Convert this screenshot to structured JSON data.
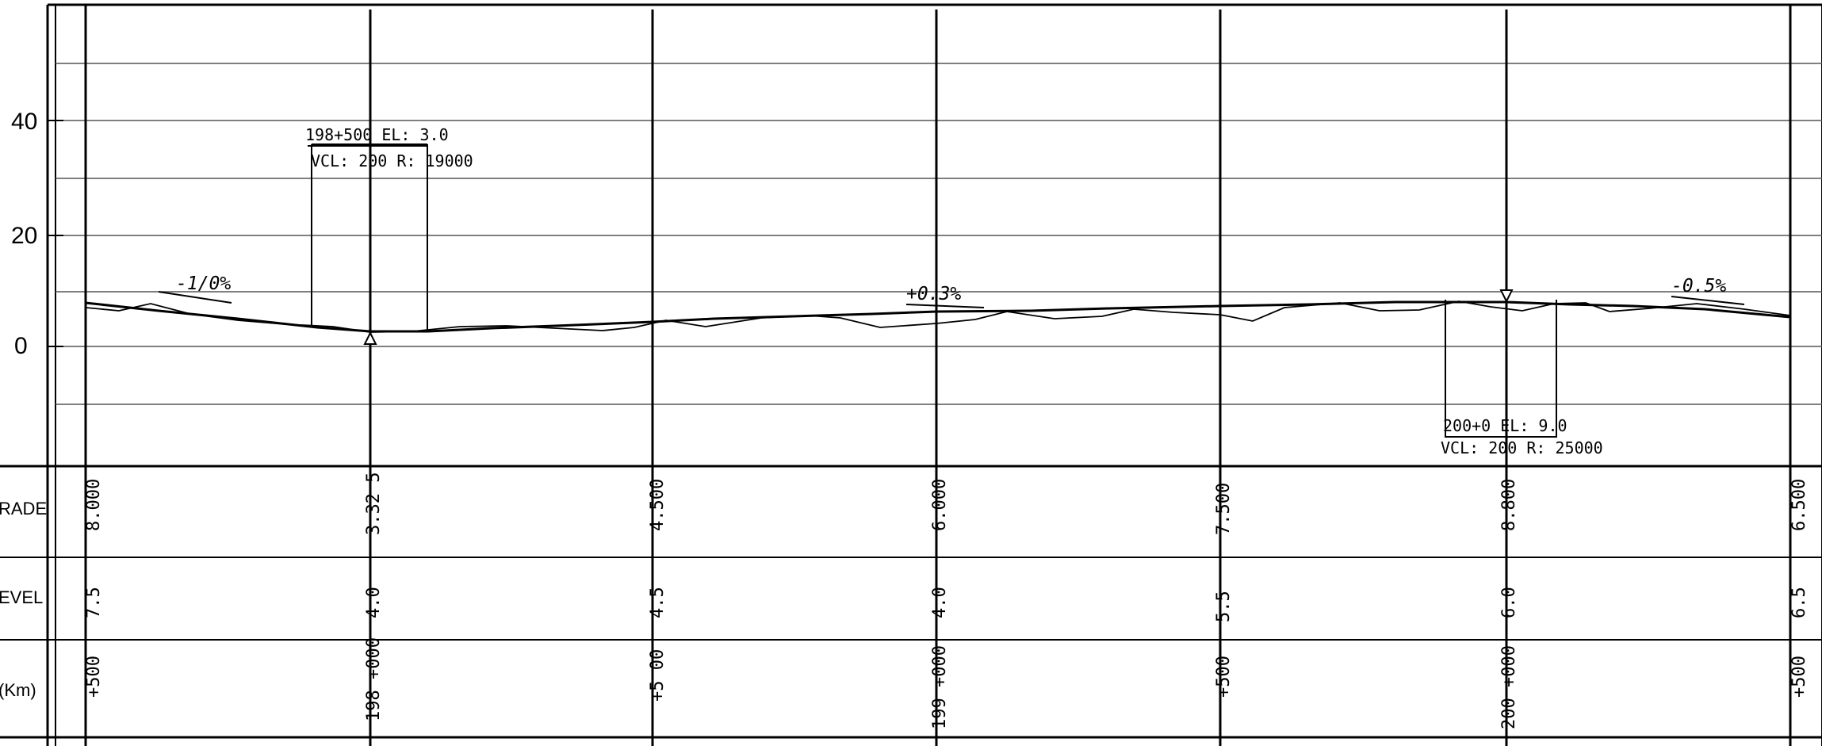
{
  "row_labels": {
    "grade": "RADE",
    "level": "EVEL",
    "chainage": "(Km)"
  },
  "y_axis_labels": [
    "40",
    "20",
    "0"
  ],
  "stations": [
    {
      "grade": "8.000",
      "level": "7.5",
      "chainage": "+500"
    },
    {
      "grade": "3.32 5",
      "level": "4.0",
      "chainage": "198 +000"
    },
    {
      "grade": "4.500",
      "level": "4.5",
      "chainage": "+5 00"
    },
    {
      "grade": "6.000",
      "level": "4.0",
      "chainage": "199 +000"
    },
    {
      "grade": "7.500",
      "level": "5.5",
      "chainage": "+500"
    },
    {
      "grade": "8.800",
      "level": "6.0",
      "chainage": "200 +000"
    },
    {
      "grade": "6.500",
      "level": "6.5",
      "chainage": "+500"
    }
  ],
  "curves": [
    {
      "line1": "198+500  EL: 3.0",
      "line2": "VCL: 200  R: 19000"
    },
    {
      "line1": "200+0  EL: 9.0",
      "line2": "VCL: 200  R: 25000"
    }
  ],
  "grades": [
    "-1/0%",
    "+0.3%",
    "-0.5%"
  ],
  "profile_values": {
    "design_grade": [
      8.0,
      3.325,
      4.5,
      6.0,
      7.5,
      8.8,
      6.5
    ],
    "ground_level": [
      7.5,
      4.0,
      4.5,
      4.0,
      5.5,
      6.0,
      6.5
    ]
  }
}
